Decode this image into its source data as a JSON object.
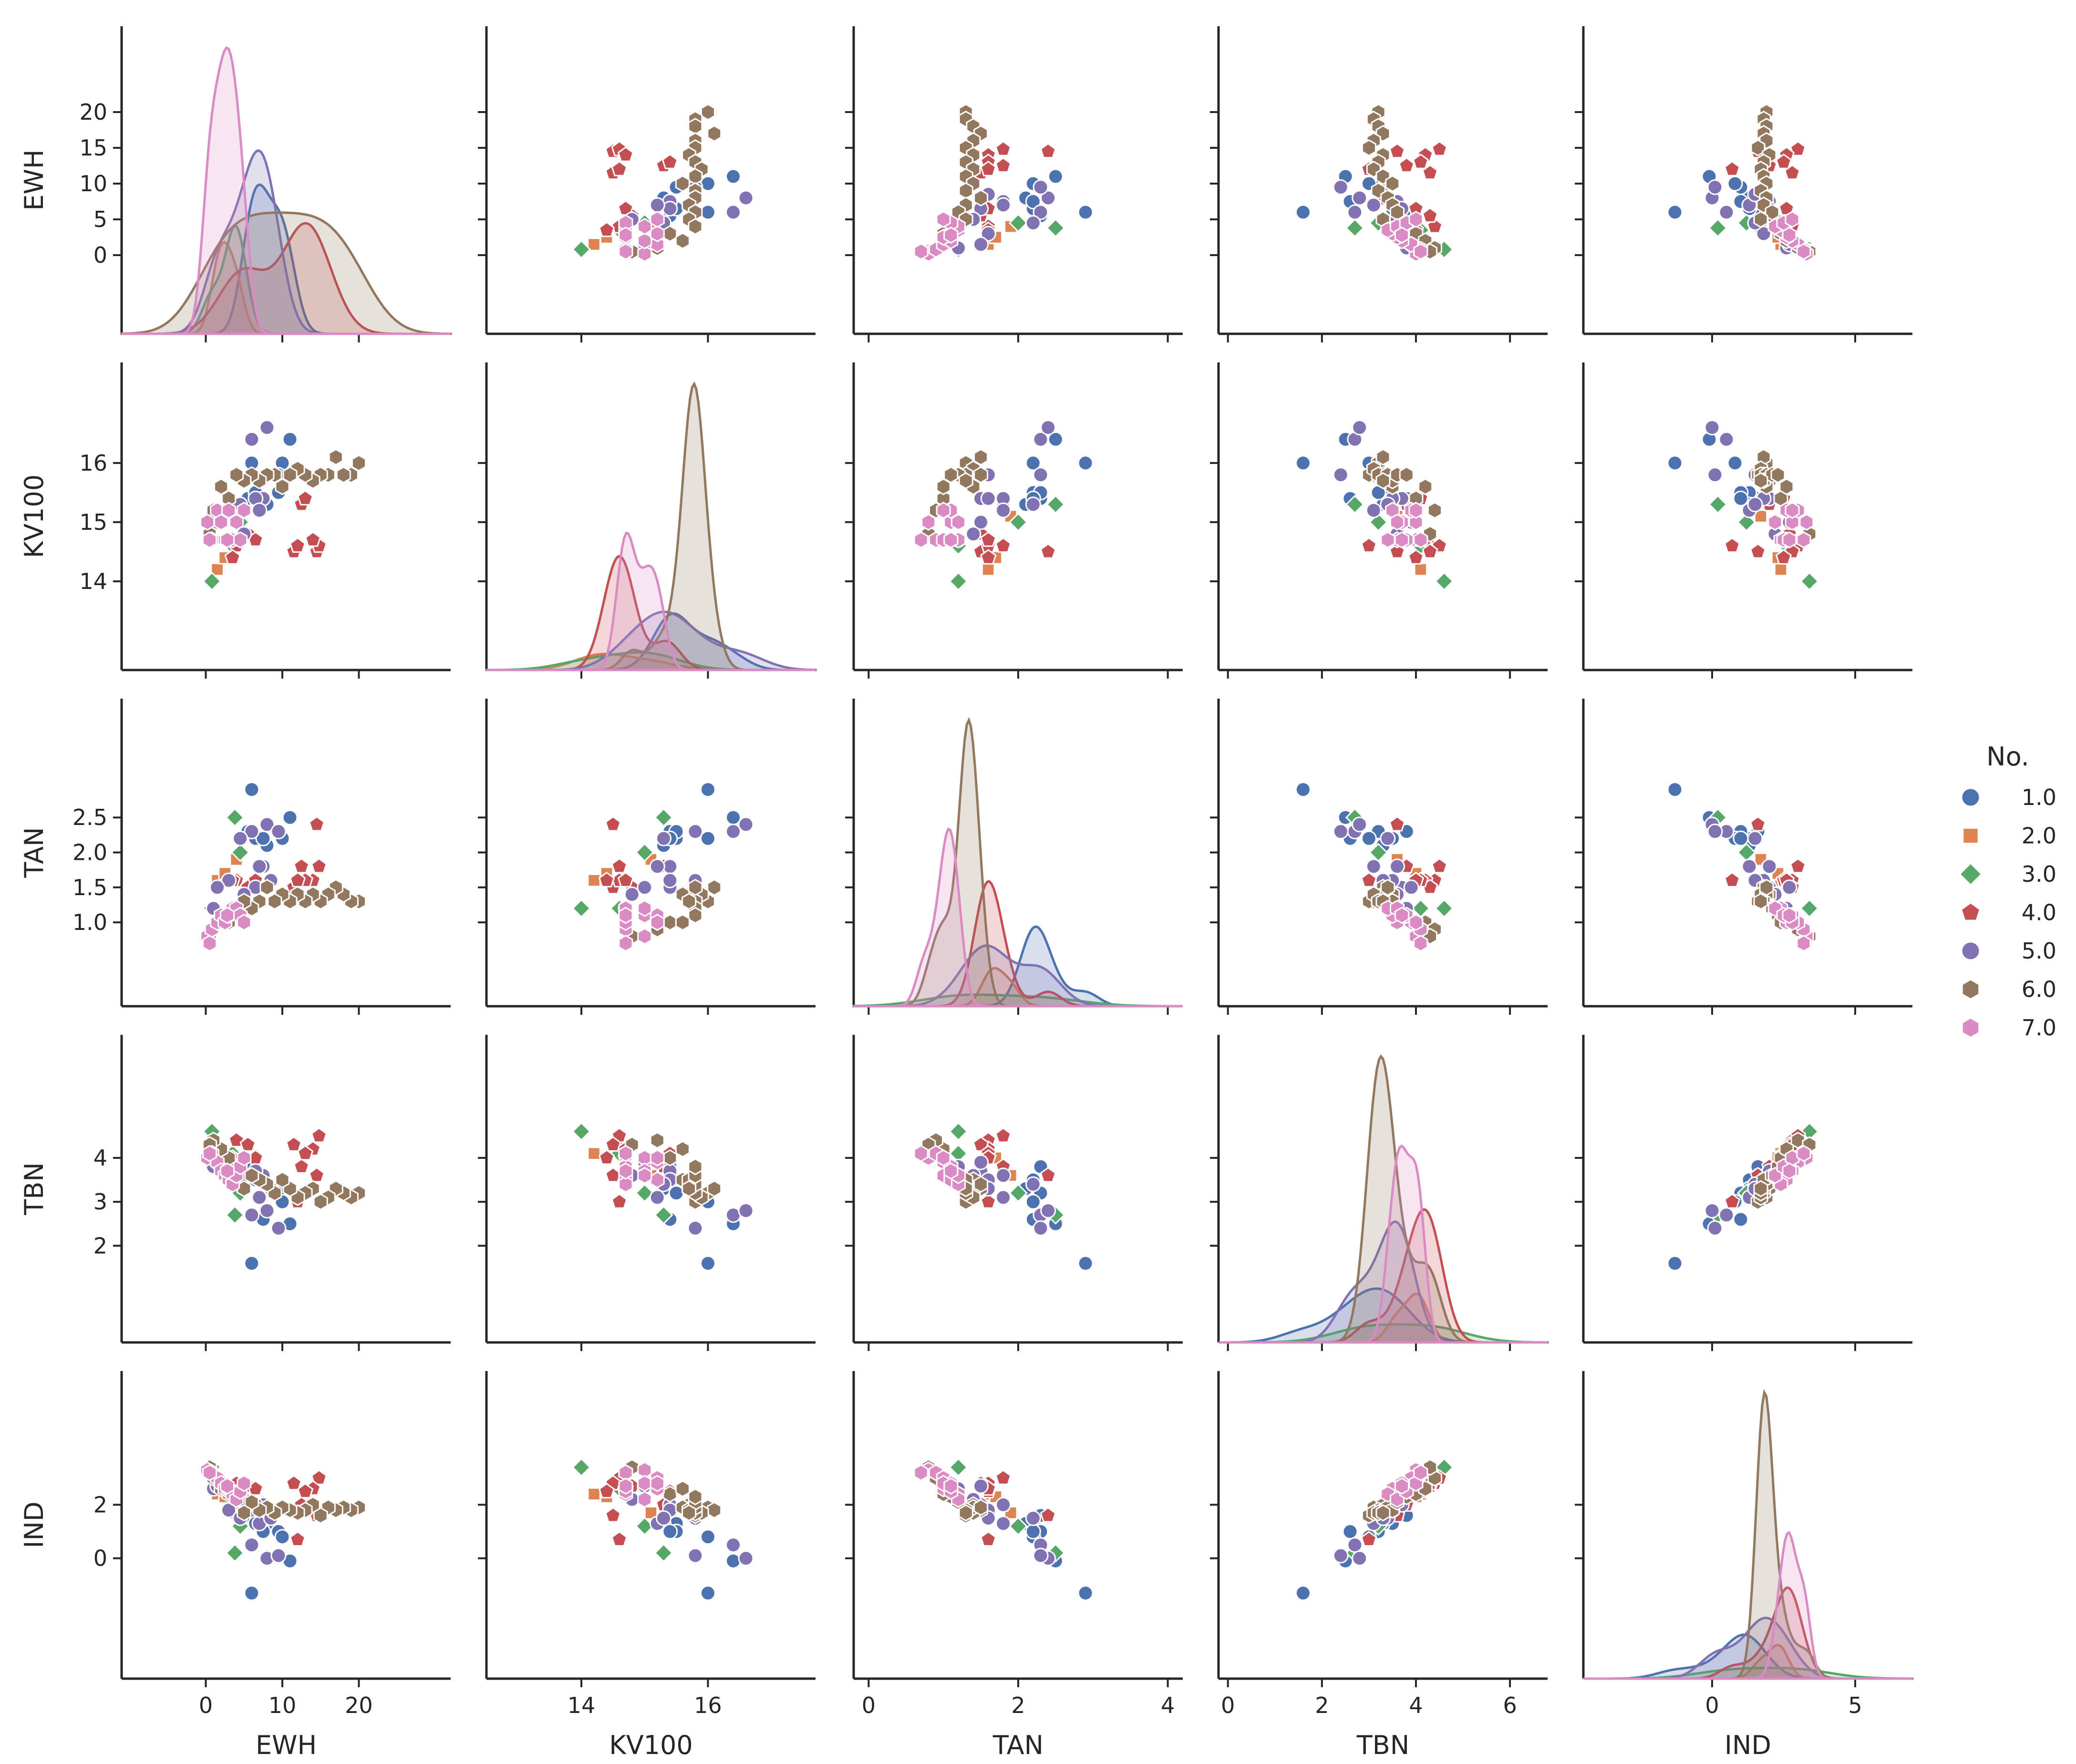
{
  "chart_data": {
    "type": "scatter",
    "title": "",
    "variables": [
      "EWH",
      "KV100",
      "TAN",
      "TBN",
      "IND"
    ],
    "hue_title": "No.",
    "axis_ranges": {
      "EWH": [
        -11,
        32
      ],
      "KV100": [
        12.5,
        17.7
      ],
      "TAN": [
        -0.2,
        4.2
      ],
      "TBN": [
        -0.2,
        6.8
      ],
      "IND": [
        -4.5,
        7.0
      ]
    },
    "ticks": {
      "EWH": [
        0,
        10,
        20
      ],
      "KV100": [
        14,
        16
      ],
      "TAN": [
        0,
        2,
        4
      ],
      "TBN": [
        0,
        2,
        4,
        6
      ],
      "IND": [
        0,
        5
      ]
    },
    "y_ticks": {
      "EWH": [
        0,
        5,
        10,
        15,
        20
      ],
      "KV100": [
        14,
        15,
        16
      ],
      "TAN": [
        1.0,
        1.5,
        2.0,
        2.5
      ],
      "TBN": [
        2,
        3,
        4
      ],
      "IND": [
        0,
        2
      ]
    },
    "tick_labels": {
      "x": {
        "EWH": [
          "0",
          "10",
          "20"
        ],
        "KV100": [
          "14",
          "16"
        ],
        "TAN": [
          "0",
          "2",
          "4"
        ],
        "TBN": [
          "0",
          "2",
          "4",
          "6"
        ],
        "IND": [
          "0",
          "5"
        ]
      },
      "y": {
        "EWH": [
          "0",
          "5",
          "10",
          "15",
          "20"
        ],
        "KV100": [
          "14",
          "15",
          "16"
        ],
        "TAN": [
          "1.0",
          "1.5",
          "2.0",
          "2.5"
        ],
        "TBN": [
          "2",
          "3",
          "4"
        ],
        "IND": [
          "0",
          "2"
        ]
      }
    },
    "diagonal": "kde",
    "legend": "right",
    "series": [
      {
        "name": "1.0",
        "marker": "circle",
        "color": "#4c72b0",
        "points": [
          [
            5.5,
            15.4,
            2.3,
            3.8,
            1.6
          ],
          [
            6.5,
            15.5,
            2.2,
            3.5,
            1.3
          ],
          [
            8.0,
            15.3,
            2.1,
            3.3,
            1.3
          ],
          [
            9.5,
            15.5,
            2.3,
            3.2,
            1.0
          ],
          [
            10.0,
            16.0,
            2.2,
            3.0,
            0.8
          ],
          [
            11.0,
            16.4,
            2.5,
            2.5,
            -0.1
          ],
          [
            6.0,
            16.0,
            2.9,
            1.6,
            -1.3
          ],
          [
            7.5,
            15.4,
            2.2,
            2.6,
            1.0
          ]
        ]
      },
      {
        "name": "2.0",
        "marker": "square",
        "color": "#dd8452",
        "points": [
          [
            1.5,
            14.2,
            1.6,
            4.1,
            2.4
          ],
          [
            2.5,
            14.4,
            1.7,
            4.0,
            2.3
          ],
          [
            4.0,
            15.1,
            1.9,
            3.6,
            1.7
          ]
        ]
      },
      {
        "name": "3.0",
        "marker": "diamond",
        "color": "#55a868",
        "points": [
          [
            0.8,
            14.0,
            1.2,
            4.6,
            3.4
          ],
          [
            3.5,
            14.6,
            1.2,
            4.1,
            2.6
          ],
          [
            4.5,
            15.0,
            2.0,
            3.2,
            1.2
          ],
          [
            3.8,
            15.3,
            2.5,
            2.7,
            0.2
          ]
        ]
      },
      {
        "name": "4.0",
        "marker": "pentagon",
        "color": "#c44e52",
        "points": [
          [
            4.0,
            14.6,
            1.6,
            4.4,
            2.8
          ],
          [
            5.5,
            14.8,
            1.5,
            4.3,
            2.7
          ],
          [
            12.5,
            15.3,
            1.8,
            3.8,
            2.0
          ],
          [
            14.5,
            14.5,
            2.4,
            3.6,
            1.6
          ],
          [
            14.8,
            14.6,
            1.8,
            4.5,
            3.0
          ],
          [
            14.0,
            14.7,
            1.6,
            4.2,
            2.6
          ],
          [
            11.5,
            14.5,
            1.5,
            4.3,
            2.8
          ],
          [
            13.0,
            15.4,
            1.6,
            4.1,
            2.5
          ],
          [
            12.0,
            14.6,
            1.6,
            3.0,
            0.7
          ],
          [
            3.5,
            14.4,
            1.6,
            4.0,
            2.5
          ],
          [
            6.5,
            14.7,
            1.6,
            4.0,
            2.6
          ]
        ]
      },
      {
        "name": "5.0",
        "marker": "circle",
        "color": "#8172b3",
        "points": [
          [
            6.0,
            16.4,
            2.3,
            2.7,
            0.5
          ],
          [
            8.0,
            16.6,
            2.4,
            2.8,
            0.0
          ],
          [
            7.5,
            15.4,
            1.8,
            3.6,
            2.0
          ],
          [
            9.5,
            15.8,
            2.3,
            2.4,
            0.1
          ],
          [
            6.5,
            15.4,
            1.5,
            3.7,
            2.0
          ],
          [
            3.0,
            15.4,
            1.6,
            3.5,
            1.8
          ],
          [
            7.0,
            15.2,
            1.8,
            3.1,
            1.3
          ],
          [
            4.5,
            15.3,
            2.2,
            3.4,
            1.5
          ],
          [
            8.5,
            15.8,
            1.6,
            3.3,
            1.5
          ],
          [
            1.0,
            14.7,
            1.2,
            3.8,
            2.6
          ],
          [
            1.5,
            15.0,
            1.5,
            3.9,
            2.7
          ],
          [
            5.0,
            14.8,
            1.4,
            3.6,
            2.2
          ]
        ]
      },
      {
        "name": "6.0",
        "marker": "hexagon",
        "color": "#937860",
        "points": [
          [
            20.0,
            16.0,
            1.3,
            3.2,
            1.9
          ],
          [
            19.0,
            15.8,
            1.3,
            3.1,
            1.8
          ],
          [
            18.0,
            15.8,
            1.4,
            3.2,
            1.9
          ],
          [
            17.0,
            16.1,
            1.5,
            3.3,
            1.8
          ],
          [
            16.0,
            15.8,
            1.4,
            3.1,
            1.9
          ],
          [
            15.0,
            15.8,
            1.3,
            3.0,
            1.6
          ],
          [
            14.0,
            15.7,
            1.4,
            3.3,
            2.0
          ],
          [
            13.0,
            15.8,
            1.3,
            3.2,
            1.8
          ],
          [
            12.0,
            15.9,
            1.4,
            3.1,
            1.7
          ],
          [
            11.0,
            15.8,
            1.3,
            3.3,
            1.8
          ],
          [
            10.0,
            15.6,
            1.4,
            3.5,
            1.9
          ],
          [
            9.0,
            15.8,
            1.3,
            3.2,
            1.7
          ],
          [
            8.0,
            15.8,
            1.5,
            3.4,
            1.9
          ],
          [
            7.0,
            15.7,
            1.3,
            3.5,
            1.8
          ],
          [
            6.0,
            15.8,
            1.2,
            3.6,
            2.1
          ],
          [
            5.0,
            15.7,
            1.3,
            3.3,
            1.7
          ],
          [
            4.0,
            15.8,
            1.1,
            3.8,
            2.3
          ],
          [
            3.0,
            15.4,
            1.0,
            4.0,
            2.4
          ],
          [
            2.0,
            15.6,
            1.0,
            4.2,
            2.6
          ],
          [
            1.0,
            15.2,
            0.9,
            4.4,
            3.0
          ],
          [
            0.5,
            14.8,
            0.8,
            4.3,
            3.4
          ]
        ]
      },
      {
        "name": "7.0",
        "marker": "hexagon",
        "color": "#da8bc3",
        "points": [
          [
            0.2,
            15.0,
            0.8,
            4.0,
            3.3
          ],
          [
            0.8,
            14.7,
            0.9,
            4.1,
            3.2
          ],
          [
            1.5,
            15.2,
            1.0,
            3.9,
            3.0
          ],
          [
            2.0,
            15.0,
            1.1,
            3.7,
            2.8
          ],
          [
            2.5,
            14.7,
            1.0,
            3.6,
            2.6
          ],
          [
            3.0,
            15.2,
            1.1,
            3.5,
            2.6
          ],
          [
            3.5,
            14.7,
            1.2,
            3.4,
            2.4
          ],
          [
            4.0,
            15.0,
            1.2,
            3.6,
            2.2
          ],
          [
            4.5,
            14.7,
            1.1,
            3.8,
            2.5
          ],
          [
            5.0,
            15.2,
            1.0,
            4.0,
            2.8
          ],
          [
            0.5,
            14.7,
            0.7,
            4.1,
            3.2
          ],
          [
            2.8,
            14.7,
            1.1,
            3.7,
            2.7
          ]
        ]
      }
    ]
  }
}
